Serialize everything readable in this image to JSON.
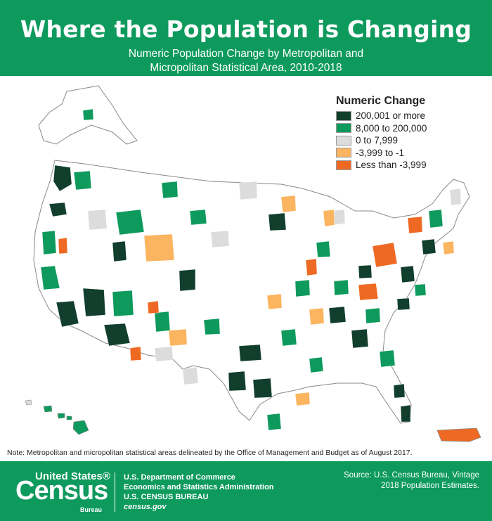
{
  "header": {
    "title": "Where the Population is Changing",
    "subtitle_line1": "Numeric Population Change by Metropolitan and",
    "subtitle_line2": "Micropolitan Statistical Area, 2010-2018"
  },
  "legend": {
    "title": "Numeric Change",
    "items": [
      {
        "label": "200,001 or more",
        "color": "#123f2d"
      },
      {
        "label": "8,000 to 200,000",
        "color": "#0e9a5d"
      },
      {
        "label": "0 to 7,999",
        "color": "#dcdcdc"
      },
      {
        "label": "-3,999 to -1",
        "color": "#fbb45f"
      },
      {
        "label": "Less than -3,999",
        "color": "#ee6a24"
      }
    ]
  },
  "note": "Note: Metropolitan and micropolitan statistical areas delineated by the Office of Management and Budget as of August 2017.",
  "footer": {
    "logo_top": "United States®",
    "logo_main": "Census",
    "logo_sub": "Bureau",
    "dept_line1": "U.S. Department of Commerce",
    "dept_line2": "Economics and Statistics Administration",
    "dept_line3": "U.S. CENSUS BUREAU",
    "dept_line4": "census.gov",
    "source_line1": "Source: U.S. Census Bureau, Vintage",
    "source_line2": "2018 Population Estimates."
  },
  "colors": {
    "banner": "#0e9a5d",
    "outline": "#888888"
  }
}
